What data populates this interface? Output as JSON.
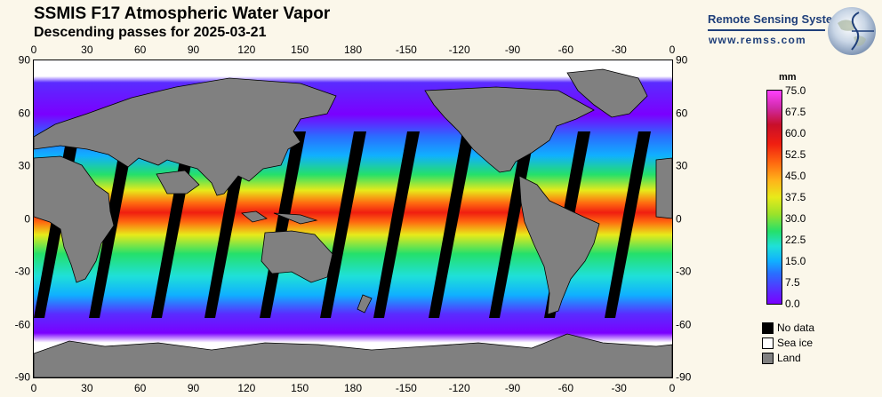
{
  "header": {
    "title": "SSMIS F17 Atmospheric Water Vapor",
    "subtitle": "Descending passes for 2025-03-21"
  },
  "brand": {
    "name": "Remote Sensing Systems",
    "url": "www.remss.com",
    "logo_icon": "globe-logo-icon"
  },
  "axes": {
    "top_lon_labels": [
      "0",
      "30",
      "60",
      "90",
      "120",
      "150",
      "180",
      "-150",
      "-120",
      "-90",
      "-60",
      "-30",
      "0"
    ],
    "bottom_lon_labels": [
      "0",
      "30",
      "60",
      "90",
      "120",
      "150",
      "180",
      "-150",
      "-120",
      "-90",
      "-60",
      "-30",
      "0"
    ],
    "left_lat_labels": [
      "90",
      "60",
      "30",
      "0",
      "-30",
      "-60",
      "-90"
    ],
    "right_lat_labels": [
      "90",
      "60",
      "30",
      "0",
      "-30",
      "-60",
      "-90"
    ]
  },
  "colorbar": {
    "unit": "mm",
    "min": 0.0,
    "max": 75.0,
    "labels": [
      "75.0",
      "67.5",
      "60.0",
      "52.5",
      "45.0",
      "37.5",
      "30.0",
      "22.5",
      "15.0",
      "7.5",
      "0.0"
    ]
  },
  "legend": [
    {
      "label": "No data",
      "color": "#000000"
    },
    {
      "label": "Sea ice",
      "color": "#ffffff"
    },
    {
      "label": "Land",
      "color": "#808080"
    }
  ],
  "colors": {
    "background": "#fbf7ea",
    "land": "#808080",
    "brand": "#1f3f7a"
  }
}
